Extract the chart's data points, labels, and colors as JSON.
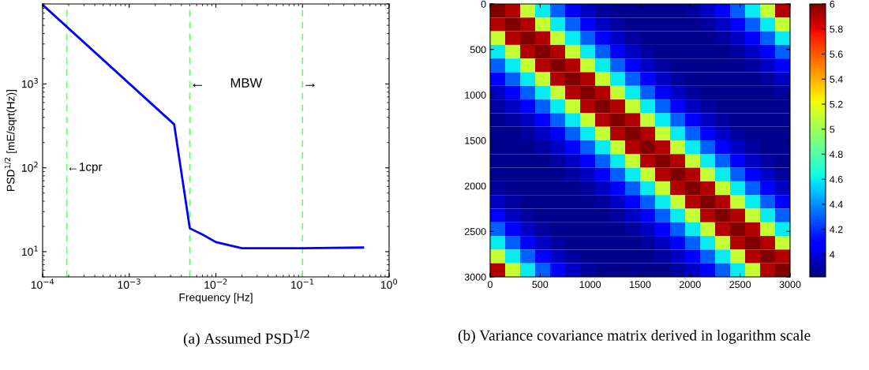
{
  "chart_data": [
    {
      "type": "line",
      "xlabel": "Frequency [Hz]",
      "ylabel": "PSD$^{1/2}$ [mE/sqrt(Hz)]",
      "log": "xy",
      "xlim": [
        0.0001,
        1
      ],
      "ylim": [
        5,
        9000
      ],
      "xticks": [
        {
          "value": 0.0001,
          "label": "10$^{−4}$"
        },
        {
          "value": 0.001,
          "label": "10$^{−3}$"
        },
        {
          "value": 0.01,
          "label": "10$^{−2}$"
        },
        {
          "value": 0.1,
          "label": "10$^{−1}$"
        },
        {
          "value": 1,
          "label": "10$^{0}$"
        }
      ],
      "yticks": [
        {
          "value": 10,
          "label": "10$^{1}$"
        },
        {
          "value": 100,
          "label": "10$^{2}$"
        },
        {
          "value": 1000,
          "label": "10$^{3}$"
        }
      ],
      "grid": false,
      "legend": false,
      "series": [
        {
          "color": "#0000ff",
          "x": [
            0.0001,
            0.0033,
            0.005,
            0.007,
            0.01,
            0.02,
            0.1,
            0.5
          ],
          "values": [
            8800,
            330,
            19,
            16,
            13,
            11,
            11,
            11.2
          ]
        }
      ],
      "ref_lines": [
        {
          "axis": "x",
          "value": 0.00019,
          "color": "#66ff66",
          "line_style": "dashed"
        },
        {
          "axis": "x",
          "value": 0.005,
          "color": "#66ff66",
          "line_style": "dashed"
        },
        {
          "axis": "x",
          "value": 0.1,
          "color": "#66ff66",
          "line_style": "dashed"
        }
      ],
      "annotations": [
        {
          "text": "←1cpr",
          "x": 0.00019,
          "y": 100
        },
        {
          "text": "←",
          "x": 0.005,
          "y": 1000
        },
        "MBW",
        {
          "text": "→",
          "x": 0.1,
          "y": 1000
        },
        "(a) Assumed PSD$^{1/2}$"
      ]
    },
    {
      "type": "heatmap",
      "xlim": [
        0,
        3000
      ],
      "ylim": [
        3000,
        0
      ],
      "xticks": [
        0,
        500,
        1000,
        1500,
        2000,
        2500,
        3000
      ],
      "yticks": [
        0,
        500,
        1000,
        1500,
        2000,
        2500,
        3000
      ],
      "clim": [
        3.82,
        6
      ],
      "cticks": [
        4,
        4.2,
        4.4,
        4.6,
        4.8,
        5,
        5.2,
        5.4,
        5.6,
        5.8,
        6
      ],
      "annotations": [
        "(b) Variance covariance matrix derived in logarithm scale"
      ],
      "cells": [
        [
          6.0,
          5.9,
          5.1,
          4.6,
          4.3,
          4.1,
          3.95,
          3.88,
          3.85,
          3.85,
          3.85,
          3.85,
          3.85,
          3.88,
          3.95,
          4.1,
          4.3,
          4.6,
          5.1,
          5.9
        ],
        [
          5.9,
          6.0,
          5.9,
          5.1,
          4.6,
          4.3,
          4.1,
          3.95,
          3.88,
          3.85,
          3.85,
          3.85,
          3.85,
          3.85,
          3.88,
          3.95,
          4.1,
          4.3,
          4.6,
          5.1
        ],
        [
          5.1,
          5.9,
          6.0,
          5.9,
          5.1,
          4.6,
          4.3,
          4.1,
          3.95,
          3.88,
          3.85,
          3.85,
          3.85,
          3.85,
          3.85,
          3.88,
          3.95,
          4.1,
          4.3,
          4.6
        ],
        [
          4.6,
          5.1,
          5.9,
          6.0,
          5.9,
          5.1,
          4.6,
          4.3,
          4.1,
          3.95,
          3.88,
          3.85,
          3.85,
          3.85,
          3.85,
          3.85,
          3.88,
          3.95,
          4.1,
          4.3
        ],
        [
          4.3,
          4.6,
          5.1,
          5.9,
          6.0,
          5.9,
          5.1,
          4.6,
          4.3,
          4.1,
          3.95,
          3.88,
          3.85,
          3.85,
          3.85,
          3.85,
          3.85,
          3.88,
          3.95,
          4.1
        ],
        [
          4.1,
          4.3,
          4.6,
          5.1,
          5.9,
          6.0,
          5.9,
          5.1,
          4.6,
          4.3,
          4.1,
          3.95,
          3.88,
          3.85,
          3.85,
          3.85,
          3.85,
          3.85,
          3.88,
          3.95
        ],
        [
          3.95,
          4.1,
          4.3,
          4.6,
          5.1,
          5.9,
          6.0,
          5.9,
          5.1,
          4.6,
          4.3,
          4.1,
          3.95,
          3.88,
          3.85,
          3.85,
          3.85,
          3.85,
          3.85,
          3.88
        ],
        [
          3.88,
          3.95,
          4.1,
          4.3,
          4.6,
          5.1,
          5.9,
          6.0,
          5.9,
          5.1,
          4.6,
          4.3,
          4.1,
          3.95,
          3.88,
          3.85,
          3.85,
          3.85,
          3.85,
          3.85
        ],
        [
          3.85,
          3.88,
          3.95,
          4.1,
          4.3,
          4.6,
          5.1,
          5.9,
          6.0,
          5.9,
          5.1,
          4.6,
          4.3,
          4.1,
          3.95,
          3.88,
          3.85,
          3.85,
          3.85,
          3.85
        ],
        [
          3.85,
          3.85,
          3.88,
          3.95,
          4.1,
          4.3,
          4.6,
          5.1,
          5.9,
          6.0,
          5.9,
          5.1,
          4.6,
          4.3,
          4.1,
          3.95,
          3.88,
          3.85,
          3.85,
          3.85
        ],
        [
          3.85,
          3.85,
          3.85,
          3.88,
          3.95,
          4.1,
          4.3,
          4.6,
          5.1,
          5.9,
          6.0,
          5.9,
          5.1,
          4.6,
          4.3,
          4.1,
          3.95,
          3.88,
          3.85,
          3.85
        ],
        [
          3.85,
          3.85,
          3.85,
          3.85,
          3.88,
          3.95,
          4.1,
          4.3,
          4.6,
          5.1,
          5.9,
          6.0,
          5.9,
          5.1,
          4.6,
          4.3,
          4.1,
          3.95,
          3.88,
          3.85
        ],
        [
          3.85,
          3.85,
          3.85,
          3.85,
          3.85,
          3.88,
          3.95,
          4.1,
          4.3,
          4.6,
          5.1,
          5.9,
          6.0,
          5.9,
          5.1,
          4.6,
          4.3,
          4.1,
          3.95,
          3.88
        ],
        [
          3.88,
          3.85,
          3.85,
          3.85,
          3.85,
          3.85,
          3.88,
          3.95,
          4.1,
          4.3,
          4.6,
          5.1,
          5.9,
          6.0,
          5.9,
          5.1,
          4.6,
          4.3,
          4.1,
          3.95
        ],
        [
          3.95,
          3.88,
          3.85,
          3.85,
          3.85,
          3.85,
          3.85,
          3.88,
          3.95,
          4.1,
          4.3,
          4.6,
          5.1,
          5.9,
          6.0,
          5.9,
          5.1,
          4.6,
          4.3,
          4.1
        ],
        [
          4.1,
          3.95,
          3.88,
          3.85,
          3.85,
          3.85,
          3.85,
          3.85,
          3.88,
          3.95,
          4.1,
          4.3,
          4.6,
          5.1,
          5.9,
          6.0,
          5.9,
          5.1,
          4.6,
          4.3
        ],
        [
          4.3,
          4.1,
          3.95,
          3.88,
          3.85,
          3.85,
          3.85,
          3.85,
          3.85,
          3.88,
          3.95,
          4.1,
          4.3,
          4.6,
          5.1,
          5.9,
          6.0,
          5.9,
          5.1,
          4.6
        ],
        [
          4.6,
          4.3,
          4.1,
          3.95,
          3.88,
          3.85,
          3.85,
          3.85,
          3.85,
          3.85,
          3.88,
          3.95,
          4.1,
          4.3,
          4.6,
          5.1,
          5.9,
          6.0,
          5.9,
          5.1
        ],
        [
          5.1,
          4.6,
          4.3,
          4.1,
          3.95,
          3.88,
          3.85,
          3.85,
          3.85,
          3.85,
          3.85,
          3.88,
          3.95,
          4.1,
          4.3,
          4.6,
          5.1,
          5.9,
          6.0,
          5.9
        ],
        [
          5.9,
          5.1,
          4.6,
          4.3,
          4.1,
          3.95,
          3.88,
          3.85,
          3.85,
          3.85,
          3.85,
          3.85,
          3.88,
          3.95,
          4.1,
          4.3,
          4.6,
          5.1,
          5.9,
          6.0
        ]
      ]
    }
  ]
}
